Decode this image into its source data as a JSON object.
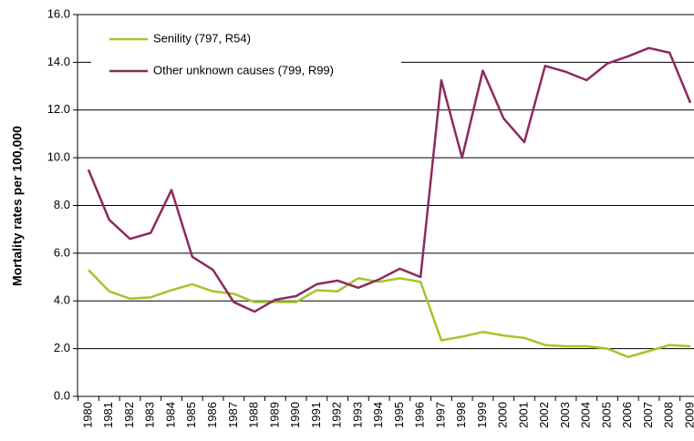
{
  "chart_data": {
    "type": "line",
    "y_label": "Mortality rates per 100,000",
    "categories": [
      "1980",
      "1981",
      "1982",
      "1983",
      "1984",
      "1985",
      "1986",
      "1987",
      "1988",
      "1989",
      "1990",
      "1991",
      "1992",
      "1993",
      "1994",
      "1995",
      "1996",
      "1997",
      "1998",
      "1999",
      "2000",
      "2001",
      "2002",
      "2003",
      "2004",
      "2005",
      "2006",
      "2007",
      "2008",
      "2009"
    ],
    "series": [
      {
        "name": "Senility (797, R54)",
        "color": "#a2c62a",
        "values": [
          5.3,
          4.4,
          4.1,
          4.15,
          4.45,
          4.7,
          4.4,
          4.3,
          3.95,
          3.95,
          3.95,
          4.45,
          4.4,
          4.95,
          4.8,
          4.95,
          4.8,
          2.35,
          2.5,
          2.7,
          2.55,
          2.45,
          2.15,
          2.1,
          2.1,
          2.0,
          1.65,
          1.9,
          2.15,
          2.1
        ]
      },
      {
        "name": "Other unknown causes (799, R99)",
        "color": "#8c2a5e",
        "values": [
          9.5,
          7.4,
          6.6,
          6.85,
          8.65,
          5.85,
          5.3,
          3.95,
          3.55,
          4.05,
          4.2,
          4.7,
          4.85,
          4.55,
          4.9,
          5.35,
          5.0,
          13.25,
          10.0,
          13.65,
          11.65,
          10.65,
          13.85,
          13.6,
          13.25,
          13.95,
          14.25,
          14.6,
          14.4,
          12.3
        ]
      }
    ],
    "ylim": [
      0,
      16
    ],
    "yticks": [
      {
        "value": 0,
        "label": "0.0"
      },
      {
        "value": 2,
        "label": "2.0"
      },
      {
        "value": 4,
        "label": "4.0"
      },
      {
        "value": 6,
        "label": "6.0"
      },
      {
        "value": 8,
        "label": "8.0"
      },
      {
        "value": 10,
        "label": "10.0"
      },
      {
        "value": 12,
        "label": "12.0"
      },
      {
        "value": 14,
        "label": "14.0"
      },
      {
        "value": 16,
        "label": "16.0"
      }
    ],
    "grid": true
  }
}
